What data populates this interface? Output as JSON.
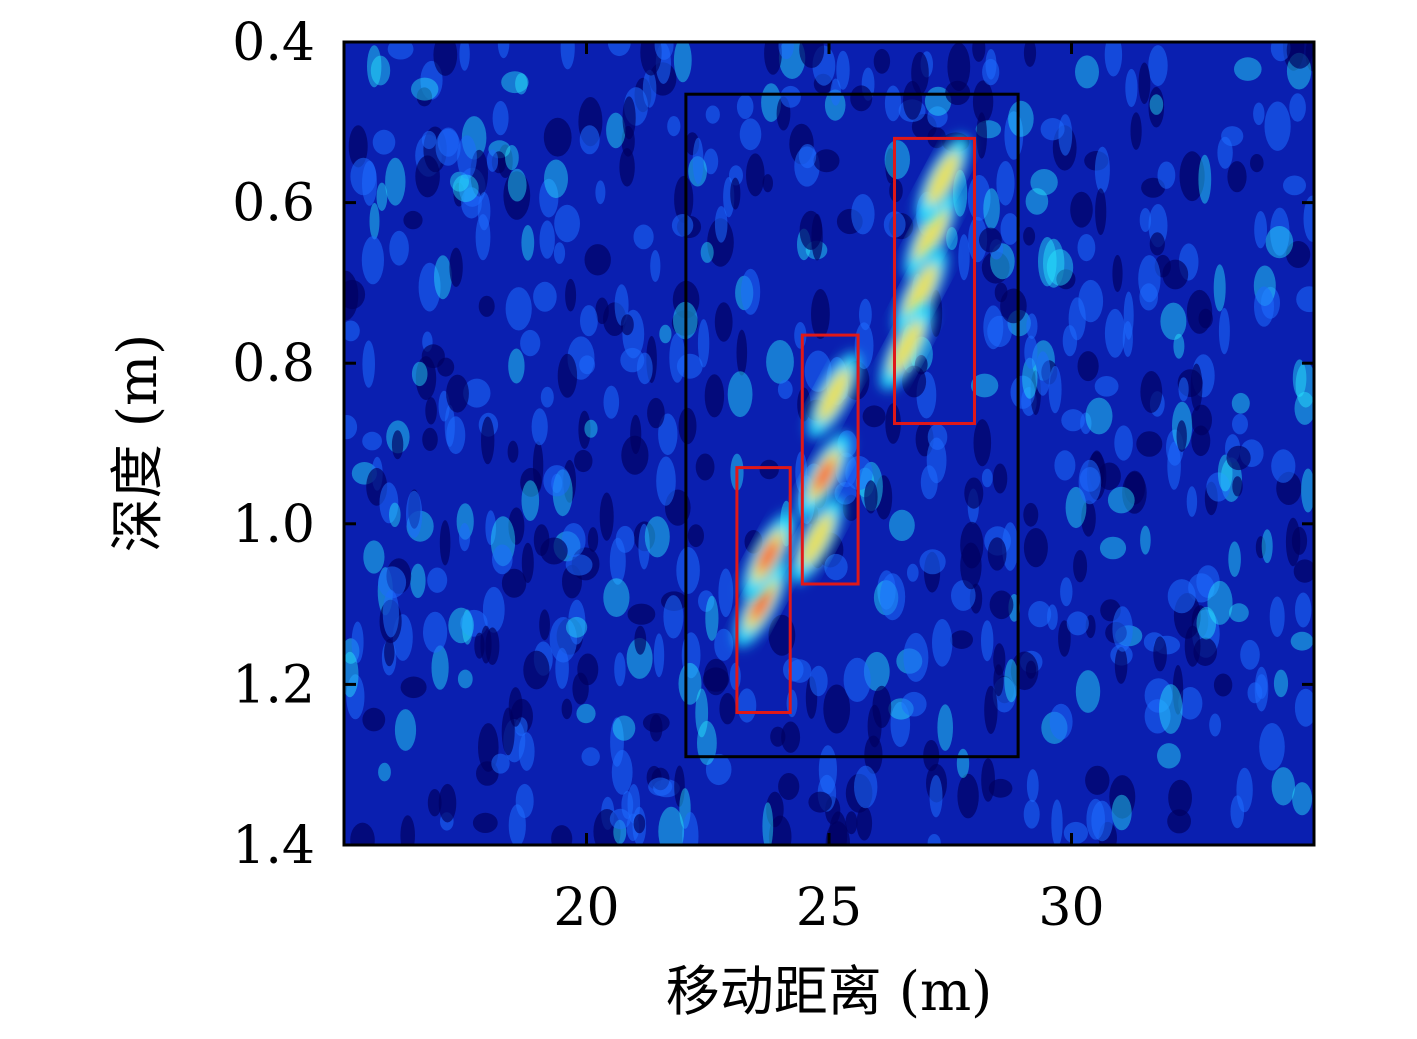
{
  "chart_data": {
    "type": "heatmap",
    "title": "",
    "xlabel": "移动距离 (m)",
    "ylabel": "深度 (m)",
    "xlim": [
      15,
      35
    ],
    "ylim": [
      0.4,
      1.4
    ],
    "y_inverted": true,
    "x_ticks": [
      {
        "value": 20,
        "label": "20"
      },
      {
        "value": 25,
        "label": "25"
      },
      {
        "value": 30,
        "label": "30"
      }
    ],
    "y_ticks": [
      {
        "value": 0.4,
        "label": "0.4"
      },
      {
        "value": 0.6,
        "label": "0.6"
      },
      {
        "value": 0.8,
        "label": "0.8"
      },
      {
        "value": 1.0,
        "label": "1.0"
      },
      {
        "value": 1.2,
        "label": "1.2"
      },
      {
        "value": 1.4,
        "label": "1.4"
      }
    ],
    "colormap": [
      "#000060",
      "#0010c0",
      "#1e6cff",
      "#28e8ff",
      "#ffe040",
      "#ff2000"
    ],
    "background_color": "#0a1fb0",
    "highlight_regions": [
      {
        "kind": "outer",
        "color": "#000000",
        "x": [
          22.05,
          28.9
        ],
        "y": [
          0.465,
          1.29
        ]
      },
      {
        "kind": "target",
        "color": "#e01818",
        "x": [
          23.1,
          24.2
        ],
        "y": [
          0.93,
          1.235
        ]
      },
      {
        "kind": "target",
        "color": "#e01818",
        "x": [
          24.45,
          25.6
        ],
        "y": [
          0.765,
          1.075
        ]
      },
      {
        "kind": "target",
        "color": "#e01818",
        "x": [
          26.35,
          28.0
        ],
        "y": [
          0.52,
          0.875
        ]
      }
    ],
    "hot_spots": [
      {
        "x": 23.6,
        "y": 1.1,
        "intensity": 1.0
      },
      {
        "x": 23.75,
        "y": 1.04,
        "intensity": 0.95
      },
      {
        "x": 24.9,
        "y": 0.94,
        "intensity": 0.95
      },
      {
        "x": 25.1,
        "y": 0.84,
        "intensity": 0.7
      },
      {
        "x": 24.75,
        "y": 1.02,
        "intensity": 0.6
      },
      {
        "x": 27.1,
        "y": 0.64,
        "intensity": 0.8
      },
      {
        "x": 27.35,
        "y": 0.57,
        "intensity": 0.6
      },
      {
        "x": 26.9,
        "y": 0.71,
        "intensity": 0.6
      },
      {
        "x": 26.6,
        "y": 0.78,
        "intensity": 0.5
      }
    ]
  }
}
